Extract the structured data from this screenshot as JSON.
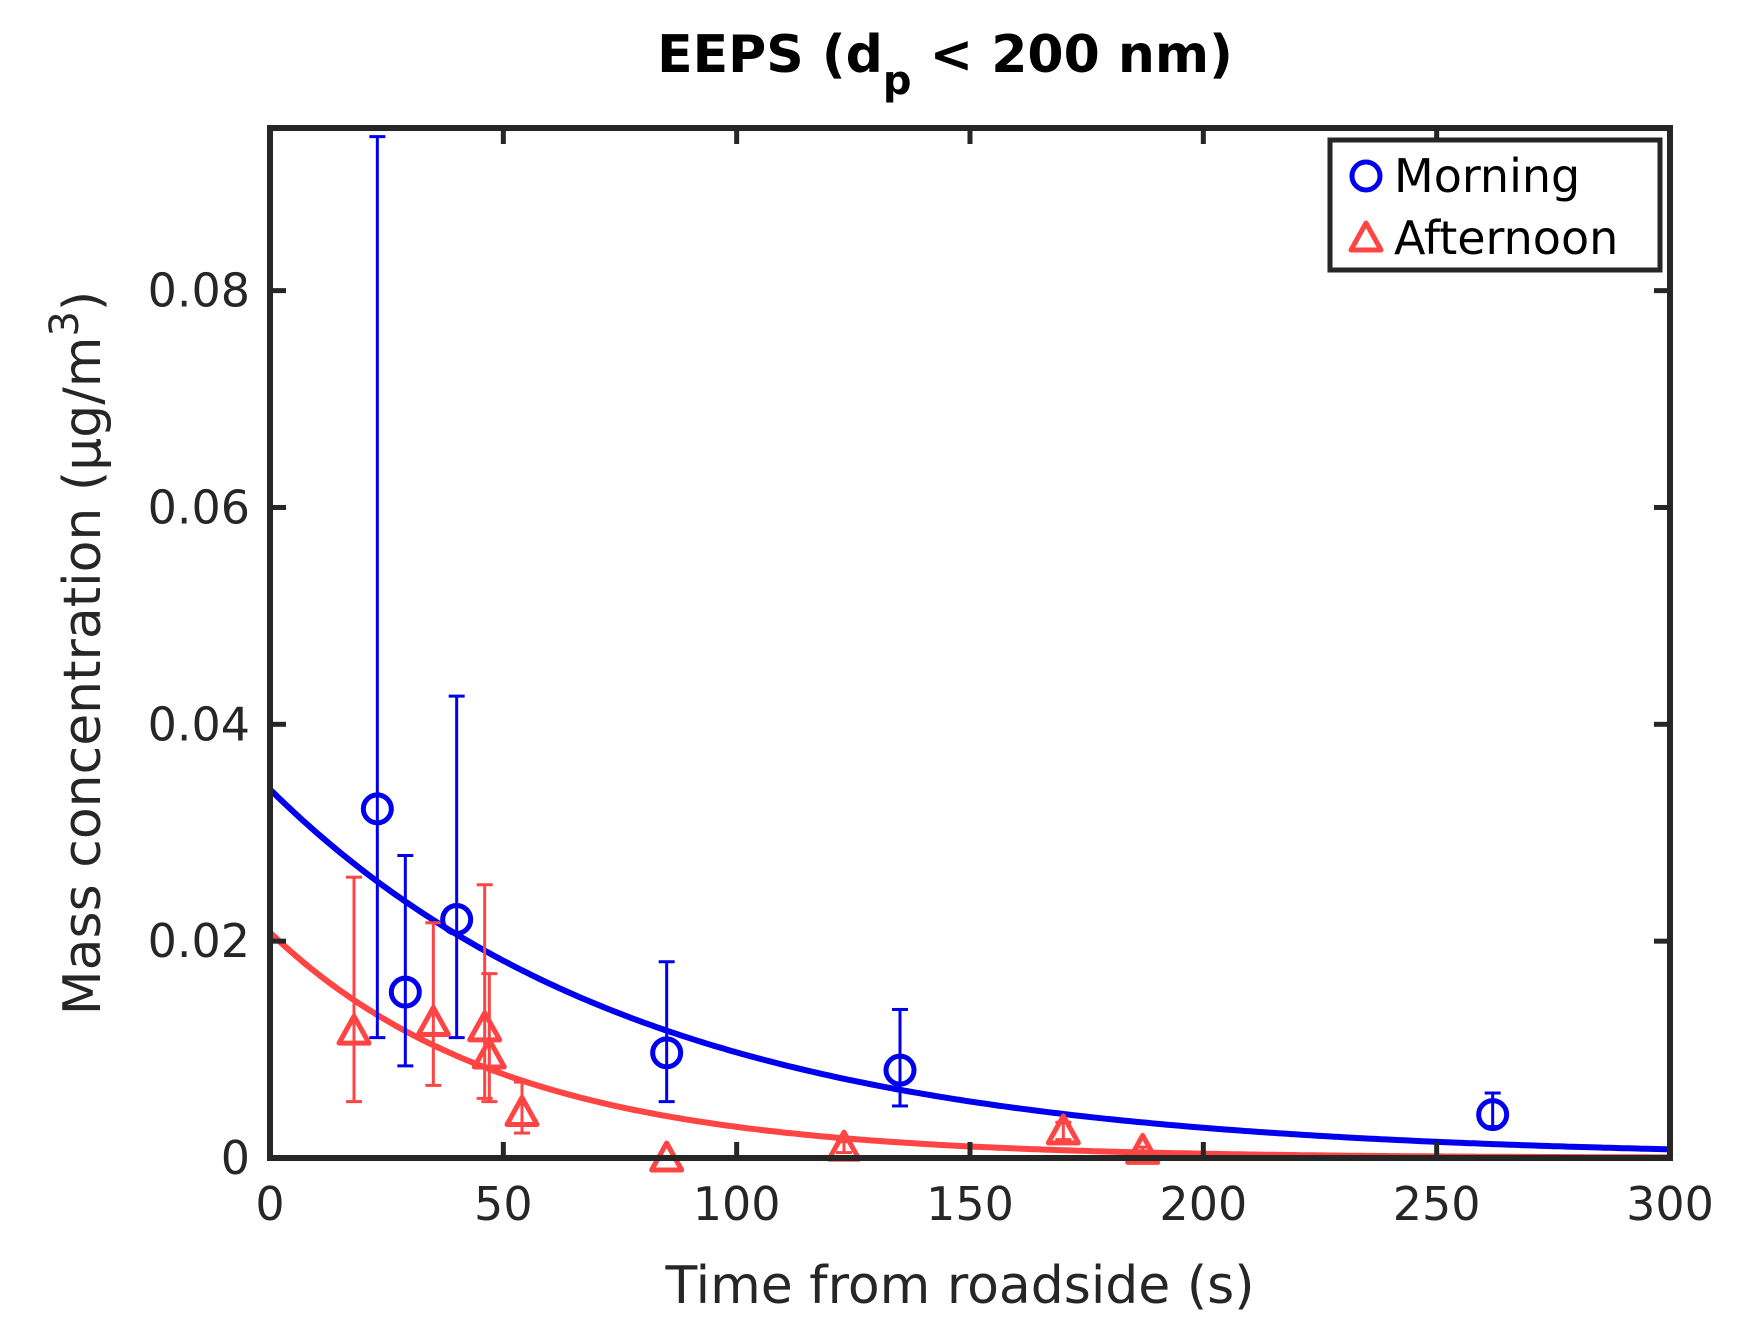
{
  "chart_data": {
    "type": "scatter",
    "title": {
      "main": "EEPS (d",
      "subscript": "p",
      "tail": " < 200 nm)"
    },
    "xlabel": "Time from roadside (s)",
    "ylabel": {
      "main": "Mass concentration (µg/m",
      "superscript": "3",
      "tail": ")"
    },
    "xlim": [
      0,
      300
    ],
    "ylim": [
      0,
      0.095
    ],
    "xticks": [
      0,
      50,
      100,
      150,
      200,
      250,
      300
    ],
    "xtick_labels": [
      "0",
      "50",
      "100",
      "150",
      "200",
      "250",
      "300"
    ],
    "yticks": [
      0,
      0.02,
      0.04,
      0.06,
      0.08
    ],
    "ytick_labels": [
      "0",
      "0.02",
      "0.04",
      "0.06",
      "0.08"
    ],
    "grid": false,
    "legend_position": "top-right",
    "series": [
      {
        "name": "Morning",
        "marker": "circle",
        "color": "#0000ee",
        "points": [
          {
            "x": 23,
            "y": 0.0322,
            "low": 0.0111,
            "high": 0.0942
          },
          {
            "x": 29,
            "y": 0.0153,
            "low": 0.0085,
            "high": 0.0279
          },
          {
            "x": 40,
            "y": 0.022,
            "low": 0.0111,
            "high": 0.0426
          },
          {
            "x": 85,
            "y": 0.0097,
            "low": 0.0052,
            "high": 0.0181
          },
          {
            "x": 135,
            "y": 0.0081,
            "low": 0.0048,
            "high": 0.0137
          },
          {
            "x": 262,
            "y": 0.004,
            "low": 0.0029,
            "high": 0.006
          }
        ],
        "fit": {
          "type": "exponential",
          "a": 0.034,
          "k": 0.0125
        }
      },
      {
        "name": "Afternoon",
        "marker": "triangle",
        "color": "#ff4444",
        "points": [
          {
            "x": 18,
            "y": 0.0117,
            "low": 0.0052,
            "high": 0.0259
          },
          {
            "x": 35,
            "y": 0.0125,
            "low": 0.0067,
            "high": 0.0217
          },
          {
            "x": 46,
            "y": 0.012,
            "low": 0.0055,
            "high": 0.0252
          },
          {
            "x": 47,
            "y": 0.0095,
            "low": 0.0052,
            "high": 0.017
          },
          {
            "x": 54,
            "y": 0.0042,
            "low": 0.0023,
            "high": 0.007
          },
          {
            "x": 85,
            "y": 0.0,
            "low": 0.0,
            "high": 0.0
          },
          {
            "x": 123,
            "y": 0.001,
            "low": 0.0005,
            "high": 0.0015
          },
          {
            "x": 170,
            "y": 0.0025,
            "low": 0.0017,
            "high": 0.0033
          },
          {
            "x": 187,
            "y": 0.0007,
            "low": 0.0004,
            "high": 0.001
          }
        ],
        "fit": {
          "type": "exponential",
          "a": 0.0208,
          "k": 0.0198
        }
      }
    ]
  }
}
